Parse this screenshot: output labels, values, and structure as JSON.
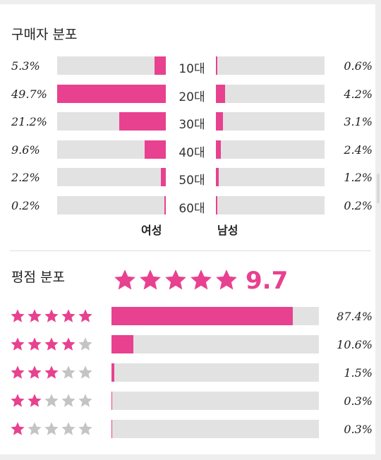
{
  "colors": {
    "accent": "#e8418f",
    "track": "#e2e2e2",
    "star_off": "#c4c4c4"
  },
  "buyer_distribution": {
    "title": "구매자 분포",
    "female_label": "여성",
    "male_label": "남성",
    "rows": [
      {
        "age": "10대",
        "female_pct": "5.3%",
        "female_value": 5.3,
        "male_pct": "0.6%",
        "male_value": 0.6
      },
      {
        "age": "20대",
        "female_pct": "49.7%",
        "female_value": 49.7,
        "male_pct": "4.2%",
        "male_value": 4.2
      },
      {
        "age": "30대",
        "female_pct": "21.2%",
        "female_value": 21.2,
        "male_pct": "3.1%",
        "male_value": 3.1
      },
      {
        "age": "40대",
        "female_pct": "9.6%",
        "female_value": 9.6,
        "male_pct": "2.4%",
        "male_value": 2.4
      },
      {
        "age": "50대",
        "female_pct": "2.2%",
        "female_value": 2.2,
        "male_pct": "1.2%",
        "male_value": 1.2
      },
      {
        "age": "60대",
        "female_pct": "0.2%",
        "female_value": 0.2,
        "male_pct": "0.2%",
        "male_value": 0.2
      }
    ]
  },
  "rating_distribution": {
    "title": "평점 분포",
    "score": "9.7",
    "rows": [
      {
        "stars": 5,
        "pct": "87.4%",
        "value": 87.4
      },
      {
        "stars": 4,
        "pct": "10.6%",
        "value": 10.6
      },
      {
        "stars": 3,
        "pct": "1.5%",
        "value": 1.5
      },
      {
        "stars": 2,
        "pct": "0.3%",
        "value": 0.3
      },
      {
        "stars": 1,
        "pct": "0.3%",
        "value": 0.3
      }
    ]
  },
  "icons": {
    "star": "star-icon"
  }
}
